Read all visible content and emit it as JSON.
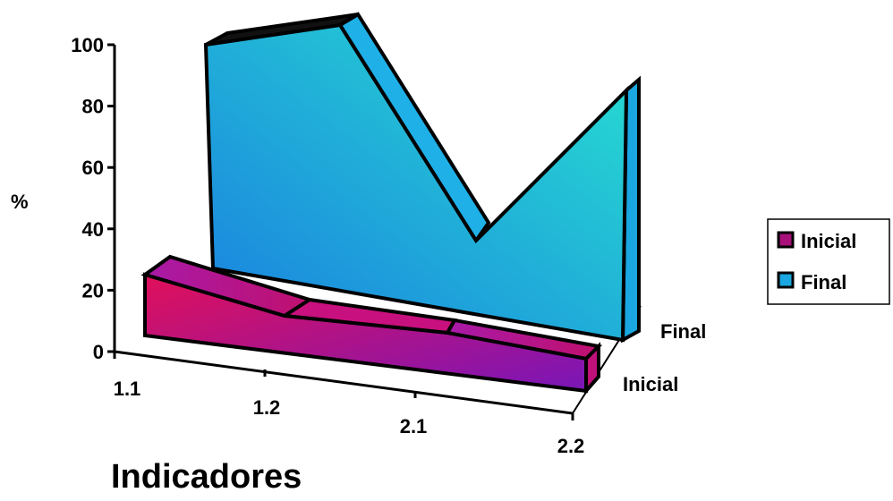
{
  "chart_data": {
    "type": "area",
    "variant": "3d-area",
    "categories": [
      "1.1",
      "1.2",
      "2.1",
      "2.2"
    ],
    "series": [
      {
        "name": "Inicial",
        "values": [
          25,
          12,
          12,
          8
        ],
        "color": "#b0107a"
      },
      {
        "name": "Final",
        "values": [
          100,
          100,
          30,
          100
        ],
        "color": "#1aa6e0"
      }
    ],
    "xlabel": "Indicadores",
    "ylabel": "%",
    "ylim": [
      0,
      100
    ],
    "yticks": [
      "0",
      "20",
      "40",
      "60",
      "80",
      "100"
    ],
    "depth_labels": [
      "Inicial",
      "Final"
    ],
    "legend_position": "right",
    "grid": false
  }
}
